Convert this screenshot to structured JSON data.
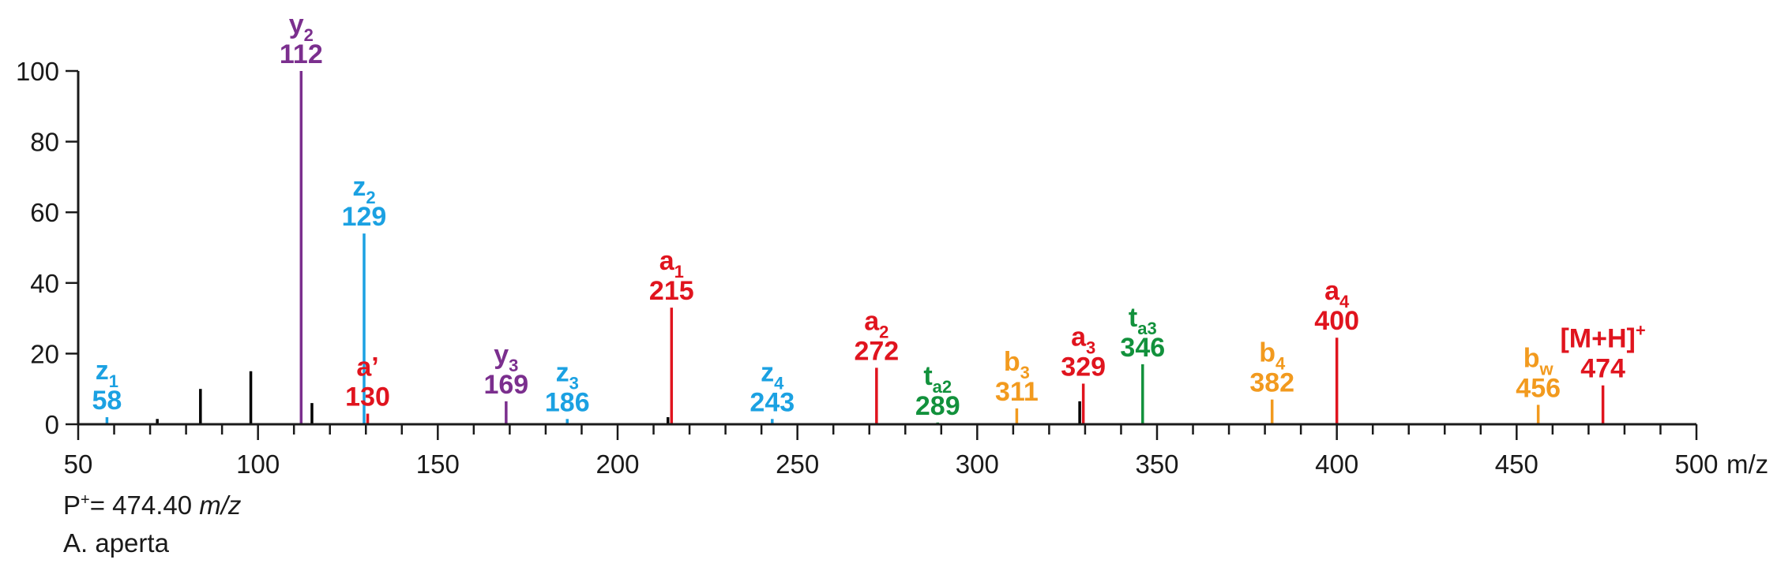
{
  "chart_data": {
    "type": "bar",
    "title": "",
    "xlabel": "",
    "ylabel": "",
    "xunit": "m/z",
    "xlim": [
      50,
      500
    ],
    "ylim": [
      0,
      100
    ],
    "xticks": [
      50,
      100,
      150,
      200,
      250,
      300,
      350,
      400,
      450,
      500
    ],
    "yticks": [
      0,
      20,
      40,
      60,
      80,
      100
    ],
    "grid": false,
    "colors": {
      "z": "#1ba1e2",
      "y": "#7b2f8e",
      "a": "#e0141e",
      "t": "#12913c",
      "b": "#f29a1e",
      "unassigned": "#000000",
      "axis": "#1a1a1a"
    },
    "peaks": [
      {
        "mz": 58,
        "intensity": 2,
        "ion": "z",
        "sub": "1",
        "sup": "",
        "value_label": "58",
        "color": "#1ba1e2"
      },
      {
        "mz": 112,
        "intensity": 100,
        "ion": "y",
        "sub": "2",
        "sup": "",
        "value_label": "112",
        "color": "#7b2f8e"
      },
      {
        "mz": 129.5,
        "intensity": 54,
        "ion": "z",
        "sub": "2",
        "sup": "",
        "value_label": "129",
        "color": "#1ba1e2"
      },
      {
        "mz": 130.5,
        "intensity": 3,
        "ion": "a’",
        "sub": "",
        "sup": "",
        "value_label": "130",
        "color": "#e0141e"
      },
      {
        "mz": 169,
        "intensity": 6.5,
        "ion": "y",
        "sub": "3",
        "sup": "",
        "value_label": "169",
        "color": "#7b2f8e"
      },
      {
        "mz": 186,
        "intensity": 1.5,
        "ion": "z",
        "sub": "3",
        "sup": "",
        "value_label": "186",
        "color": "#1ba1e2"
      },
      {
        "mz": 215,
        "intensity": 33,
        "ion": "a",
        "sub": "1",
        "sup": "",
        "value_label": "215",
        "color": "#e0141e"
      },
      {
        "mz": 243,
        "intensity": 1.5,
        "ion": "z",
        "sub": "4",
        "sup": "",
        "value_label": "243",
        "color": "#1ba1e2"
      },
      {
        "mz": 272,
        "intensity": 16,
        "ion": "a",
        "sub": "2",
        "sup": "",
        "value_label": "272",
        "color": "#e0141e"
      },
      {
        "mz": 289,
        "intensity": 0.5,
        "ion": "t",
        "sub": "a2",
        "sup": "",
        "value_label": "289",
        "color": "#12913c"
      },
      {
        "mz": 311,
        "intensity": 4.5,
        "ion": "b",
        "sub": "3",
        "sup": "",
        "value_label": "311",
        "color": "#f29a1e"
      },
      {
        "mz": 329.5,
        "intensity": 11.5,
        "ion": "a",
        "sub": "3",
        "sup": "",
        "value_label": "329",
        "color": "#e0141e"
      },
      {
        "mz": 346,
        "intensity": 17,
        "ion": "t",
        "sub": "a3",
        "sup": "",
        "value_label": "346",
        "color": "#12913c"
      },
      {
        "mz": 382,
        "intensity": 7,
        "ion": "b",
        "sub": "4",
        "sup": "",
        "value_label": "382",
        "color": "#f29a1e"
      },
      {
        "mz": 400,
        "intensity": 24.5,
        "ion": "a",
        "sub": "4",
        "sup": "",
        "value_label": "400",
        "color": "#e0141e"
      },
      {
        "mz": 456,
        "intensity": 5.5,
        "ion": "b",
        "sub": "w",
        "sup": "",
        "value_label": "456",
        "color": "#f29a1e"
      },
      {
        "mz": 474,
        "intensity": 11,
        "ion": "[M+H]",
        "sub": "",
        "sup": "+",
        "value_label": "474",
        "color": "#e0141e"
      }
    ],
    "unassigned_peaks": [
      {
        "mz": 72,
        "intensity": 1.5
      },
      {
        "mz": 84,
        "intensity": 10
      },
      {
        "mz": 98,
        "intensity": 15
      },
      {
        "mz": 115,
        "intensity": 6
      },
      {
        "mz": 214,
        "intensity": 2
      },
      {
        "mz": 328.5,
        "intensity": 6.5
      }
    ]
  },
  "notes": {
    "precursor_prefix": "P",
    "precursor_sup": "+",
    "precursor_eq": "= 474.40 ",
    "precursor_unit": "m/z",
    "species": "A. aperta"
  }
}
